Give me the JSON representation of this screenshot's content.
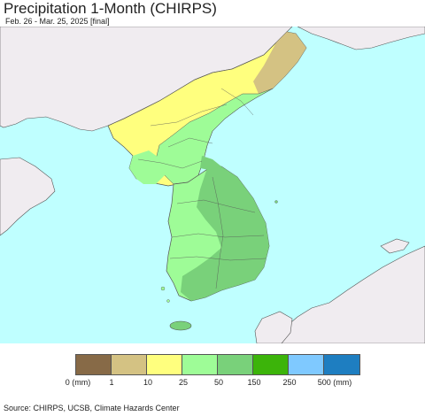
{
  "title": "Precipitation 1-Month (CHIRPS)",
  "subtitle": "Feb. 26 - Mar. 25, 2025 [final]",
  "source": "Source: CHIRPS, UCSB, Climate Hazards Center",
  "colors": {
    "sea": "#bfffff",
    "other_land": "#f0ecf0",
    "border": "#555555"
  },
  "legend": {
    "colors": [
      "#876a47",
      "#d4c283",
      "#ffff7e",
      "#9efc97",
      "#79d17a",
      "#3cb40a",
      "#7fc9ff",
      "#1e7ec1"
    ],
    "labels": [
      "0 (mm)",
      "1",
      "10",
      "25",
      "50",
      "150",
      "250",
      "500 (mm)"
    ]
  },
  "map": {
    "regions": [
      {
        "name": "northeast-dry-area",
        "class": "1-10 mm"
      },
      {
        "name": "north-korea-west",
        "class": "10-25 mm"
      },
      {
        "name": "north-korea-east",
        "class": "25-50 mm"
      },
      {
        "name": "south-korea-central",
        "class": "50-150 mm"
      },
      {
        "name": "south-korea-west-coast",
        "class": "25-50 mm"
      },
      {
        "name": "jeju",
        "class": "50-150 mm"
      }
    ]
  }
}
